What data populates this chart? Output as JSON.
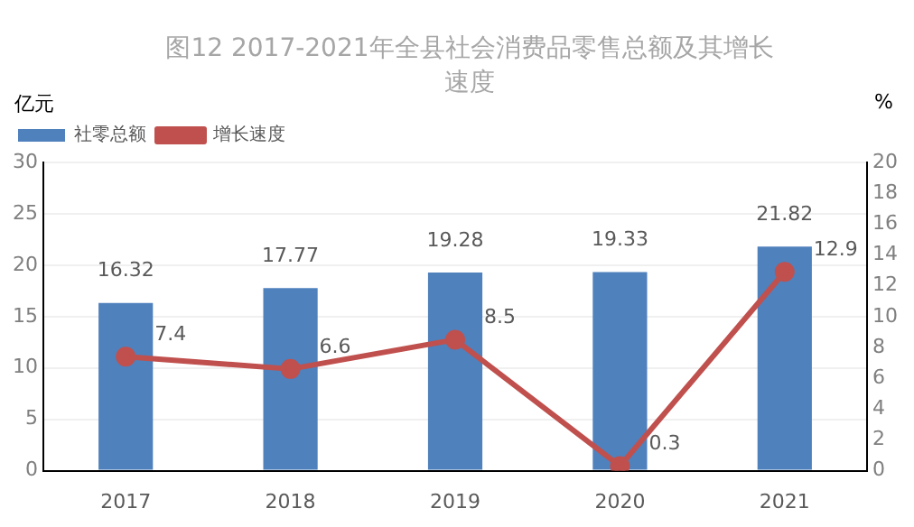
{
  "chart_data": {
    "type": "bar",
    "title": "图12 2017-2021年全县社会消费品零售总额及其增长速度",
    "ylabel": "亿元",
    "y2label": "%",
    "categories": [
      "2017",
      "2018",
      "2019",
      "2020",
      "2021"
    ],
    "series": [
      {
        "name": "社零总额",
        "color": "#4f81bd",
        "values": [
          16.32,
          17.77,
          19.28,
          19.33,
          21.82
        ]
      },
      {
        "name": "增长速度",
        "type": "line",
        "axis": "y2",
        "color": "#c0504d",
        "marker": "circle",
        "values": [
          7.4,
          6.6,
          8.5,
          0.3,
          12.9
        ]
      }
    ],
    "ylim": [
      0,
      30
    ],
    "yticks": [
      0,
      5,
      10,
      15,
      20,
      25,
      30
    ],
    "y2lim": [
      0,
      20
    ],
    "y2ticks": [
      0,
      2,
      4,
      6,
      8,
      10,
      12,
      14,
      16,
      18,
      20
    ],
    "grid": "y",
    "legend": "top left",
    "data_labels": true
  }
}
